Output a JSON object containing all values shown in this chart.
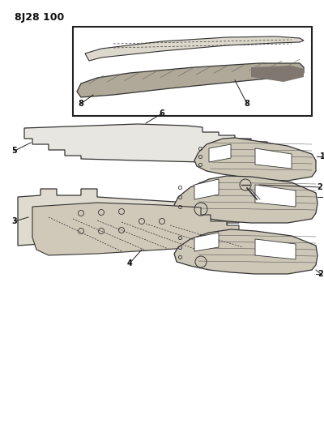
{
  "title": "8J28 100",
  "bg_color": "#ffffff",
  "fig_width": 4.0,
  "fig_height": 5.33,
  "dpi": 100,
  "label_color": "#111111",
  "line_color": "#222222",
  "box_color": "#222222",
  "sketch_color": "#333333",
  "fill_light": "#e8e6e0",
  "fill_mid": "#c8c4b8",
  "fill_dark": "#909080"
}
